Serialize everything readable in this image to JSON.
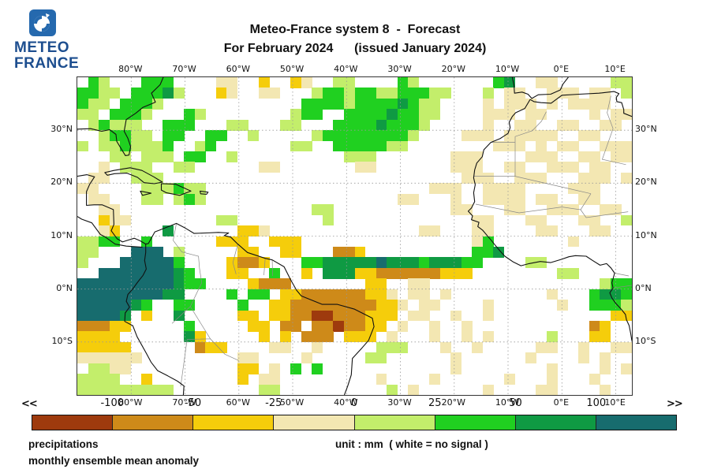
{
  "logo": {
    "brand_line1": "METEO",
    "brand_line2": "FRANCE",
    "icon_color": "#2569ae",
    "text_color": "#1d4e8f"
  },
  "title": {
    "line1": "Meteo-France system 8  -  Forecast",
    "line2": "For February 2024      (issued January 2024)"
  },
  "map": {
    "lon_ticks": [
      "80°W",
      "70°W",
      "60°W",
      "50°W",
      "40°W",
      "30°W",
      "20°W",
      "10°W",
      "0°E",
      "10°E"
    ],
    "lat_ticks": [
      "30°N",
      "20°N",
      "10°N",
      "0°N",
      "10°S"
    ],
    "grid": {
      "cols": 52,
      "rows": 30,
      "legend": {
        ".": "white / no signal",
        "1": "< -100",
        "2": "-100 to -50",
        "3": "-50 to -25",
        "4": "-25 to 0",
        "5": "0 to 25",
        "6": "25 to 50",
        "7": "50 to 100",
        "8": "> 100"
      },
      "rows_data": [
        ".65...666....44..3..34..55....65.......67..44.....55",
        "6655.66675...34..44...5665665566655...5.44..444.44.5",
        "655.6665.............6666566667655....4.444.4.4444..",
        "55.6665...65........566..666676655....444.44....4.44",
        ".56555..666...55...55...666676665.....4..44..44..44.",
        "..56655.66..66..5.....5666666665....444.44444..44...",
        "5.5565556..56.......55..6666655........444.4.44..444",
        "...55.555.66..5..........555.......444....444..44.44",
        "..4.555..55......44.......44.......444..44..444.44..",
        ".44..555............................444..444...444.4444",
        "44....555655.....................444..4444....444..",
        ".44...55.565............!.....44...4..4444.44..44",
        "..44..................55...........44...44..444..44..",
        "..344........55........5.............44...44...44..5.",
        "..43....7......334..............44...44....44...44.",
        "5566..6......333..333................46.......4....",
        "55...888.5.....33..33...223..........667............",
        "5...888886....3223...66777778777677766....55........",
        "..888888876...33..6..3.77733222222333........55.....",
        "888888888766....3222.......33..44................5665",
        "8888888877....6.66.33222222334.44.4.........4...6776",
        "8888876..66....6..3322222222334.44....4......4..6665",
        "88887.3..7.....33.332211222333.44..4..4...........33",
        "22233.....6.....33.22.2212233.4..4..4...........23.",
        "3333......73.....3.3.222.333.4...4..4.4.....5...33..",
        "33333......233....44..4.....555...4..4.....44..4..44",
        "444444.........44....4.....55......4......4....4.4..",
        ".5544..........33.4.6.6............4........4....4.44",
        "5555..3........3.44.........4....4......4...4...4..",
        "555555555........55..........5.4......4....44....4"
      ]
    },
    "palette": {
      "1": "#9e3a0d",
      "2": "#ce8a19",
      "3": "#f5cd0b",
      "4": "#f3e7b2",
      "5": "#c3ee6b",
      "6": "#20d020",
      "7": "#0f9a43",
      "8": "#176c6e"
    }
  },
  "colorbar": {
    "left_arrow": "<<",
    "right_arrow": ">>",
    "tick_labels": [
      "-100",
      "-50",
      "-25",
      "0",
      "25",
      "50",
      "100"
    ],
    "colors": [
      "#9e3a0d",
      "#ce8a19",
      "#f5cd0b",
      "#f3e7b2",
      "#c3ee6b",
      "#20d020",
      "#0f9a43",
      "#176c6e"
    ]
  },
  "footer": {
    "label1": "precipitations",
    "label2": "monthly ensemble mean anomaly",
    "unit_label": "unit : mm  ( white = no signal )"
  }
}
